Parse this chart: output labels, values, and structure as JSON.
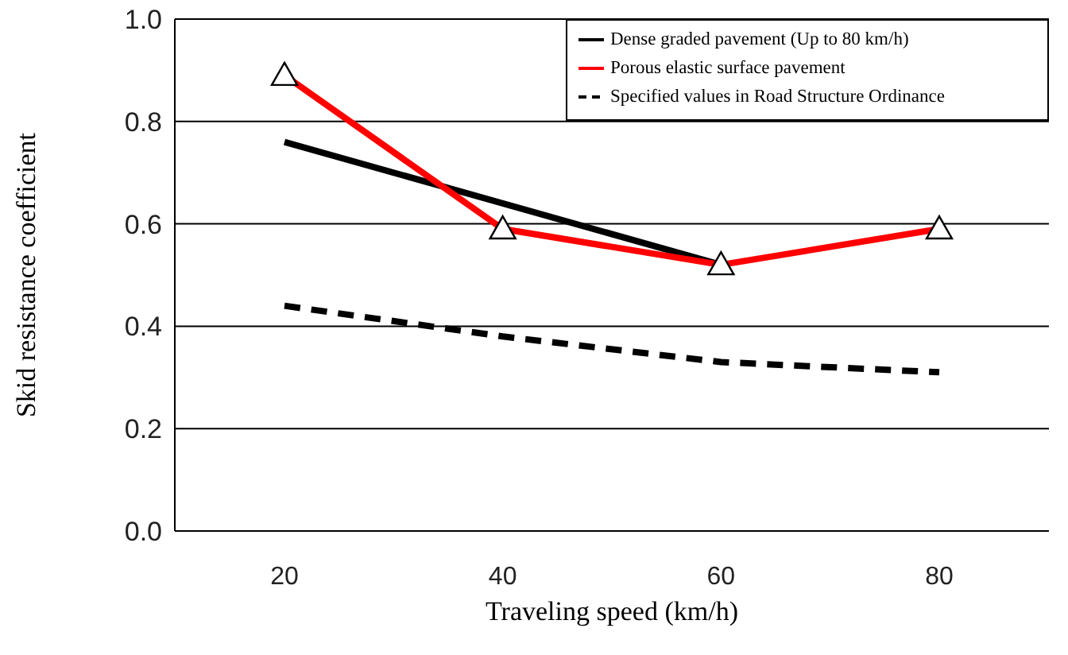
{
  "chart_data": {
    "type": "line",
    "xlabel": "Traveling speed (km/h)",
    "ylabel": "Skid resistance coefficient",
    "categories": [
      "20",
      "40",
      "60",
      "80"
    ],
    "series": [
      {
        "name": "Dense graded pavement (Up to 80 km/h)",
        "color": "#000000",
        "values": [
          0.76,
          0.64,
          0.52,
          null
        ],
        "marker": "none",
        "line_style": "solid"
      },
      {
        "name": "Porous elastic surface pavement",
        "color": "#ff0000",
        "values": [
          0.89,
          0.59,
          0.52,
          0.59
        ],
        "marker": "triangle",
        "line_style": "solid"
      },
      {
        "name": "Specified values in Road Structure Ordinance",
        "color": "#000000",
        "values": [
          0.44,
          0.38,
          0.33,
          0.31
        ],
        "marker": "none",
        "line_style": "dashed"
      }
    ],
    "ylim": [
      0,
      1
    ],
    "yticks": [
      {
        "value": 0,
        "label": "0.0"
      },
      0.2,
      0.4,
      0.6,
      0.8,
      {
        "value": 1,
        "label": "1.0"
      }
    ],
    "grid": "y",
    "legend": "top right"
  }
}
